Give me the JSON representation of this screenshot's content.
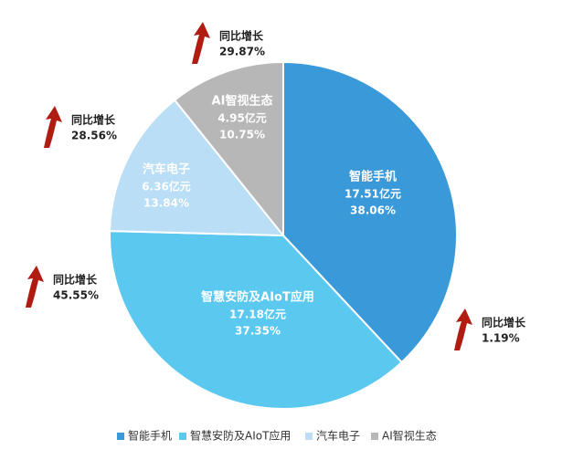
{
  "chart_data": {
    "type": "pie",
    "categories": [
      "智能手机",
      "智慧安防及AIoT应用",
      "汽车电子",
      "AI智视生态"
    ],
    "values": [
      38.06,
      37.35,
      13.84,
      10.75
    ],
    "value_labels": [
      "38.06%",
      "37.35%",
      "13.84%",
      "10.75%"
    ],
    "amount_labels": [
      "17.51亿元",
      "17.18亿元",
      "6.36亿元",
      "4.95亿元"
    ],
    "colors": [
      "#3a9ad9",
      "#5bc8f0",
      "#b9def5",
      "#b7b7b7"
    ],
    "annotations": [
      {
        "label": "同比增长",
        "value": "1.19%"
      },
      {
        "label": "同比增长",
        "value": "45.55%"
      },
      {
        "label": "同比增长",
        "value": "28.56%"
      },
      {
        "label": "同比增长",
        "value": "29.87%"
      }
    ],
    "legend": "bottom"
  }
}
